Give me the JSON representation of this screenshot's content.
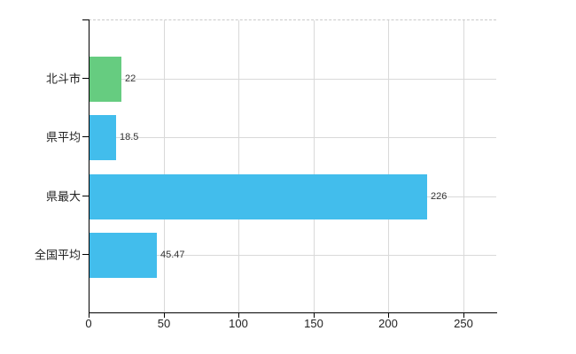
{
  "chart_data": {
    "type": "bar",
    "orientation": "horizontal",
    "title": "",
    "xlabel": "",
    "ylabel": "",
    "categories": [
      "北斗市",
      "県平均",
      "県最大",
      "全国平均"
    ],
    "values": [
      22,
      18.5,
      226,
      45.47
    ],
    "value_labels": [
      "22",
      "18.5",
      "226",
      "45.47"
    ],
    "bar_colors": [
      "#66cc80",
      "#42bdec",
      "#42bdec",
      "#42bdec"
    ],
    "x_ticks": [
      0,
      50,
      100,
      150,
      200,
      250
    ],
    "x_tick_labels": [
      "0",
      "50",
      "100",
      "150",
      "200",
      "250"
    ],
    "xlim": [
      0,
      272
    ],
    "grid": true,
    "legend": false
  },
  "colors": {
    "background": "#ffffff",
    "axis": "#000000",
    "grid": "#d9d9d9",
    "text": "#222222",
    "value_text": "#333333",
    "green_bar": "#66cc80",
    "blue_bar": "#42bdec"
  }
}
